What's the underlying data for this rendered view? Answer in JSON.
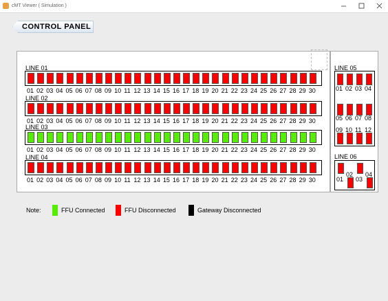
{
  "window": {
    "title": "cMT Viewer ( Simulation )"
  },
  "header": {
    "title": "CONTROL PANEL"
  },
  "legend": {
    "note": "Note:",
    "items": [
      {
        "label": "FFU Connected",
        "color": "#55ee00"
      },
      {
        "label": "FFU Disconnected",
        "color": "#ff0000"
      },
      {
        "label": "Gateway Disconnected",
        "color": "#000000"
      }
    ]
  },
  "lines": [
    {
      "label": "LINE 01",
      "status": 1,
      "units": [
        "01",
        "02",
        "03",
        "04",
        "05",
        "06",
        "07",
        "08",
        "09",
        "10",
        "11",
        "12",
        "13",
        "14",
        "15",
        "16",
        "17",
        "18",
        "19",
        "20",
        "21",
        "22",
        "23",
        "24",
        "25",
        "26",
        "27",
        "28",
        "29",
        "30"
      ]
    },
    {
      "label": "LINE 02",
      "status": 1,
      "units": [
        "01",
        "02",
        "03",
        "04",
        "05",
        "06",
        "07",
        "08",
        "09",
        "10",
        "11",
        "12",
        "13",
        "14",
        "15",
        "16",
        "17",
        "18",
        "19",
        "20",
        "21",
        "22",
        "23",
        "24",
        "25",
        "26",
        "27",
        "28",
        "29",
        "30"
      ]
    },
    {
      "label": "LINE 03",
      "status": 0,
      "units": [
        "01",
        "02",
        "03",
        "04",
        "05",
        "06",
        "07",
        "08",
        "09",
        "10",
        "11",
        "12",
        "13",
        "14",
        "15",
        "16",
        "17",
        "18",
        "19",
        "20",
        "21",
        "22",
        "23",
        "24",
        "25",
        "26",
        "27",
        "28",
        "29",
        "30"
      ]
    },
    {
      "label": "LINE 04",
      "status": 1,
      "units": [
        "01",
        "02",
        "03",
        "04",
        "05",
        "06",
        "07",
        "08",
        "09",
        "10",
        "11",
        "12",
        "13",
        "14",
        "15",
        "16",
        "17",
        "18",
        "19",
        "20",
        "21",
        "22",
        "23",
        "24",
        "25",
        "26",
        "27",
        "28",
        "29",
        "30"
      ]
    },
    {
      "label": "LINE 05",
      "status": 1,
      "units": [
        "01",
        "02",
        "03",
        "04",
        "05",
        "06",
        "07",
        "08",
        "09",
        "10",
        "11",
        "12"
      ]
    },
    {
      "label": "LINE 06",
      "status": 1,
      "units": [
        "01",
        "02",
        "03",
        "04"
      ]
    }
  ]
}
